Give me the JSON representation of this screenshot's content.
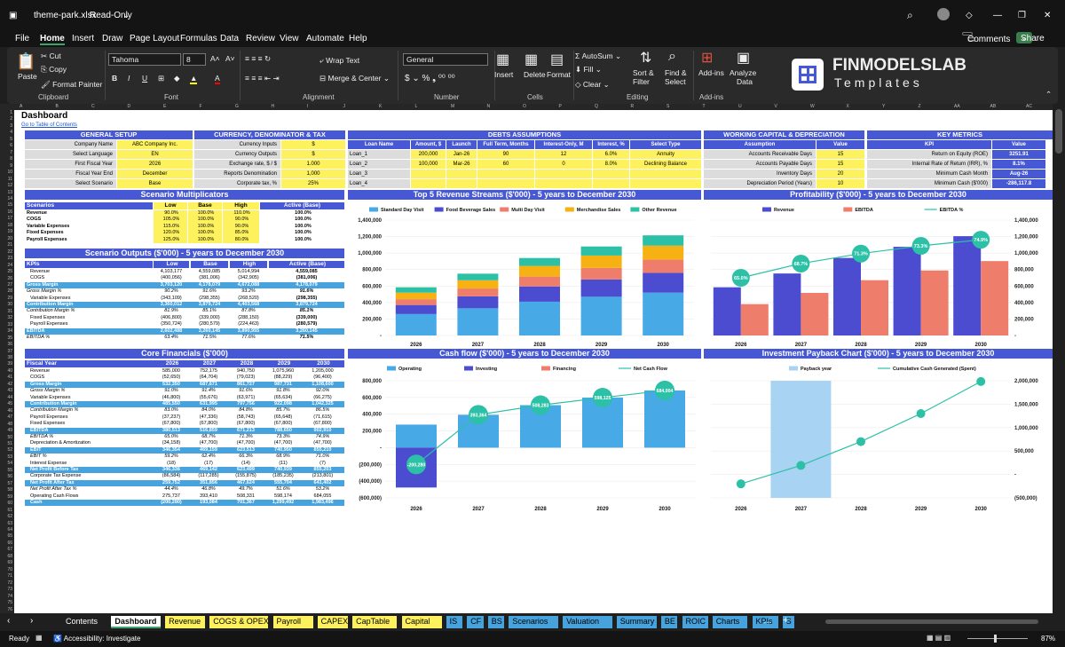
{
  "window": {
    "file": "theme-park.xlsx",
    "mode": "Read-Only"
  },
  "menu": [
    "File",
    "Home",
    "Insert",
    "Draw",
    "Page Layout",
    "Formulas",
    "Data",
    "Review",
    "View",
    "Automate",
    "Help"
  ],
  "comments_label": "Comments",
  "share_label": "Share",
  "ribbon": {
    "paste": "Paste",
    "cut": "Cut",
    "copy": "Copy",
    "format_painter": "Format Painter",
    "clipboard": "Clipboard",
    "font_name": "Tahoma",
    "font_size": "8",
    "font": "Font",
    "wrap": "Wrap Text",
    "merge": "Merge & Center",
    "alignment": "Alignment",
    "numfmt": "General",
    "number": "Number",
    "insert": "Insert",
    "delete": "Delete",
    "format": "Format",
    "cells": "Cells",
    "autosum": "AutoSum",
    "fill": "Fill",
    "clear": "Clear",
    "sort": "Sort &",
    "filter": "Filter",
    "find": "Find &",
    "select": "Select",
    "editing": "Editing",
    "addins": "Add-ins",
    "analyze": "Analyze",
    "data": "Data",
    "addins_grp": "Add-ins",
    "logo1": "FINMODELSLAB",
    "logo2": "Templates"
  },
  "columns": [
    "A",
    "B",
    "C",
    "D",
    "E",
    "F",
    "G",
    "H",
    "I",
    "J",
    "K",
    "L",
    "M",
    "N",
    "O",
    "P",
    "Q",
    "R",
    "S",
    "T",
    "U",
    "V",
    "W",
    "X",
    "Y",
    "Z",
    "AA",
    "AB",
    "AC"
  ],
  "sheet": {
    "title": "Dashboard",
    "toc": "Go to Table of Contents",
    "general": {
      "header": "GENERAL SETUP",
      "rows": [
        [
          "Company Name",
          "ABC Company Inc."
        ],
        [
          "Select Language",
          "EN"
        ],
        [
          "First Fiscal Year",
          "2026"
        ],
        [
          "Fiscal Year End",
          "December"
        ],
        [
          "Select Scenario",
          "Base"
        ]
      ]
    },
    "currency": {
      "header": "CURRENCY, DENOMINATOR & TAX",
      "rows": [
        [
          "Currency Inputs",
          "$"
        ],
        [
          "Currency Outputs",
          "$"
        ],
        [
          "Exchange rate, $ / $",
          "1.000"
        ],
        [
          "Reports Denomination",
          "1,000"
        ],
        [
          "Corporate tax, %",
          "25%"
        ]
      ]
    },
    "debts": {
      "header": "DEBTS ASSUMPTIONS",
      "cols": [
        "Loan Name",
        "Amount, $",
        "Launch",
        "Full Term, Months",
        "Interest-Only, M",
        "Interest, %",
        "Select Type"
      ],
      "rows": [
        [
          "Loan_1",
          "200,000",
          "Jan-26",
          "90",
          "12",
          "6.0%",
          "Annuity"
        ],
        [
          "Loan_2",
          "100,000",
          "Mar-26",
          "60",
          "0",
          "8.0%",
          "Declining Balance"
        ],
        [
          "Loan_3",
          "",
          "",
          "",
          "",
          "",
          ""
        ],
        [
          "Loan_4",
          "",
          "",
          "",
          "",
          "",
          ""
        ]
      ]
    },
    "wc": {
      "header": "WORKING CAPITAL & DEPRECIATION",
      "cols": [
        "Assumption",
        "Value"
      ],
      "rows": [
        [
          "Accounts Receivable Days",
          "15"
        ],
        [
          "Accounts Payable Days",
          "15"
        ],
        [
          "Inventory Days",
          "20"
        ],
        [
          "Depreciation Period (Years)",
          "10"
        ]
      ]
    },
    "metrics": {
      "header": "KEY METRICS",
      "cols": [
        "KPI",
        "Value"
      ],
      "rows": [
        [
          "Return on Equity (ROE)",
          "3251.91"
        ],
        [
          "Internal Rate of Return (IRR), %",
          "8.1%"
        ],
        [
          "Minimum Cash Month",
          "Aug-26"
        ],
        [
          "Minimum Cash ($'000)",
          "-286,117.8"
        ]
      ]
    },
    "multipliers": {
      "title": "Scenario Multiplicators",
      "cols": [
        "Scenarios",
        "Low",
        "Base",
        "High",
        "Active (Base)"
      ],
      "rows": [
        [
          "Revenue",
          "90.0%",
          "100.0%",
          "110.0%",
          "100.0%"
        ],
        [
          "COGS",
          "105.0%",
          "100.0%",
          "90.0%",
          "100.0%"
        ],
        [
          "Variable Expenses",
          "115.0%",
          "100.0%",
          "90.0%",
          "100.0%"
        ],
        [
          "Fixed Expenses",
          "120.0%",
          "100.0%",
          "85.0%",
          "100.0%"
        ],
        [
          "Payroll Expenses",
          "125.0%",
          "100.0%",
          "80.0%",
          "100.0%"
        ]
      ]
    },
    "outputs": {
      "title": "Scenario Outputs ($'000) - 5 years to December 2030",
      "cols": [
        "KPIs",
        "Low",
        "Base",
        "High",
        "Active (Base)"
      ],
      "rows": [
        [
          "Revenue",
          "4,103,177",
          "4,559,085",
          "5,014,994",
          "4,559,085",
          ""
        ],
        [
          "COGS",
          "(400,056)",
          "(381,006)",
          "(342,905)",
          "(381,006)",
          ""
        ],
        [
          "Gross Margin",
          "3,703,120",
          "4,178,079",
          "4,672,088",
          "4,178,079",
          "hl"
        ],
        [
          "Gross Margin %",
          "90.2%",
          "91.6%",
          "93.2%",
          "91.6%",
          "it"
        ],
        [
          "Variable Expenses",
          "(343,109)",
          "(298,355)",
          "(268,520)",
          "(298,355)",
          ""
        ],
        [
          "Contribution Margin",
          "3,360,012",
          "3,879,724",
          "4,403,568",
          "3,879,724",
          "hl"
        ],
        [
          "Contribution Margin %",
          "81.9%",
          "85.1%",
          "87.8%",
          "85.1%",
          "it"
        ],
        [
          "Fixed Expenses",
          "(406,800)",
          "(339,000)",
          "(288,150)",
          "(339,000)",
          ""
        ],
        [
          "Payroll Expenses",
          "(350,724)",
          "(280,579)",
          "(224,463)",
          "(280,579)",
          ""
        ],
        [
          "EBITDA",
          "2,602,488",
          "3,260,145",
          "3,890,955",
          "3,260,145",
          "hl"
        ],
        [
          "EBITDA %",
          "63.4%",
          "71.5%",
          "77.6%",
          "71.5%",
          "it"
        ]
      ]
    },
    "core": {
      "title": "Core Financials ($'000)",
      "cols": [
        "Fiscal Year",
        "2026",
        "2027",
        "2028",
        "2029",
        "2030"
      ],
      "rows": [
        [
          "Revenue",
          "585,000",
          "752,175",
          "940,750",
          "1,075,960",
          "1,205,000",
          ""
        ],
        [
          "COGS",
          "(52,650)",
          "(64,704)",
          "(79,023)",
          "(88,229)",
          "(96,400)",
          ""
        ],
        [
          "Gross Margin",
          "532,350",
          "687,671",
          "861,727",
          "987,731",
          "1,108,600",
          "hl"
        ],
        [
          "Gross Margin %",
          "91.0%",
          "91.4%",
          "91.6%",
          "91.8%",
          "92.0%",
          "it"
        ],
        [
          "Variable Expenses",
          "(46,800)",
          "(55,676)",
          "(63,971)",
          "(65,634)",
          "(66,275)",
          ""
        ],
        [
          "Contribution Margin",
          "485,550",
          "631,995",
          "797,756",
          "922,098",
          "1,042,325",
          "hl"
        ],
        [
          "Contribution Margin %",
          "83.0%",
          "84.0%",
          "84.8%",
          "85.7%",
          "86.5%",
          "it"
        ],
        [
          "Payroll Expenses",
          "(37,237)",
          "(47,336)",
          "(58,743)",
          "(65,648)",
          "(71,615)",
          ""
        ],
        [
          "Fixed Expenses",
          "(67,800)",
          "(67,800)",
          "(67,800)",
          "(67,800)",
          "(67,800)",
          ""
        ],
        [
          "EBITDA",
          "380,513",
          "516,859",
          "671,213",
          "788,650",
          "902,910",
          "hl"
        ],
        [
          "EBITDA %",
          "65.0%",
          "68.7%",
          "71.3%",
          "73.3%",
          "74.9%",
          "it"
        ],
        [
          "Depreciation & Amortization",
          "(34,158)",
          "(47,700)",
          "(47,700)",
          "(47,700)",
          "(47,700)",
          ""
        ],
        [
          "EBIT",
          "346,354",
          "469,159",
          "623,513",
          "740,950",
          "855,210",
          "hl"
        ],
        [
          "EBIT %",
          "59.2%",
          "62.4%",
          "66.3%",
          "68.9%",
          "71.0%",
          "it"
        ],
        [
          "Interest Expense",
          "(18)",
          "(17)",
          "(14)",
          "(11)",
          "(7)",
          ""
        ],
        [
          "Net Profit Before Tax",
          "346,336",
          "469,142",
          "623,499",
          "740,939",
          "855,203",
          "hl"
        ],
        [
          "Corporate Tax Expense",
          "(86,584)",
          "(117,285)",
          "(155,875)",
          "(185,235)",
          "(213,801)",
          ""
        ],
        [
          "Net Profit After Tax",
          "259,752",
          "351,856",
          "467,624",
          "555,704",
          "641,402",
          "hl"
        ],
        [
          "Net Profit After Tax %",
          "44.4%",
          "46.8%",
          "49.7%",
          "51.6%",
          "53.2%",
          "it"
        ],
        [
          "Operating Cash Flows",
          "275,737",
          "393,410",
          "508,331",
          "598,174",
          "684,055",
          ""
        ],
        [
          "Cash",
          "(200,280)",
          "193,084",
          "701,367",
          "1,299,492",
          "1,983,496",
          "hl"
        ]
      ]
    }
  },
  "chart_data": [
    {
      "type": "bar",
      "title": "Top 5 Revenue Streams ($'000) - 5 years to December 2030",
      "categories": [
        "2026",
        "2027",
        "2028",
        "2029",
        "2030"
      ],
      "series": [
        {
          "name": "Standard Day Visit",
          "color": "#47a9e6",
          "values": [
            260000,
            330000,
            410000,
            470000,
            520000
          ]
        },
        {
          "name": "Food Beverage Sales",
          "color": "#4b4cd0",
          "values": [
            110000,
            145000,
            185000,
            210000,
            240000
          ]
        },
        {
          "name": "Multi Day Visit",
          "color": "#ef7d6b",
          "values": [
            70000,
            95000,
            120000,
            140000,
            160000
          ]
        },
        {
          "name": "Merchandise Sales",
          "color": "#f5b212",
          "values": [
            80000,
            100000,
            130000,
            150000,
            170000
          ]
        },
        {
          "name": "Other Revenue",
          "color": "#2cc0a6",
          "values": [
            65000,
            80000,
            95000,
            110000,
            125000
          ]
        }
      ],
      "yticks": [
        "-",
        "200,000",
        "400,000",
        "600,000",
        "800,000",
        "1,000,000",
        "1,200,000",
        "1,400,000"
      ],
      "ylim": [
        0,
        1400000
      ]
    },
    {
      "type": "bar",
      "title": "Profitability ($'000) - 5 years to December 2030",
      "categories": [
        "2026",
        "2027",
        "2028",
        "2029",
        "2030"
      ],
      "series": [
        {
          "name": "Revenue",
          "color": "#4b4cd0",
          "values": [
            585000,
            752175,
            940750,
            1075960,
            1205000
          ]
        },
        {
          "name": "EBITDA",
          "color": "#ef7d6b",
          "values": [
            380513,
            516859,
            671213,
            788650,
            902910
          ]
        },
        {
          "name": "EBITDA %",
          "color": "#2cc0a6",
          "labels": [
            "65.0%",
            "68.7%",
            "71.3%",
            "73.3%",
            "74.9%"
          ],
          "values": [
            65.0,
            68.7,
            71.3,
            73.3,
            74.9
          ]
        }
      ],
      "yticks": [
        "-",
        "200,000",
        "400,000",
        "600,000",
        "800,000",
        "1,000,000",
        "1,200,000",
        "1,400,000"
      ],
      "ylim": [
        0,
        1400000
      ]
    },
    {
      "type": "bar",
      "title": "Cash flow ($'000) - 5 years to December 2030",
      "categories": [
        "2026",
        "2027",
        "2028",
        "2029",
        "2030"
      ],
      "series": [
        {
          "name": "Operating",
          "color": "#47a9e6",
          "values": [
            275737,
            393410,
            508331,
            598174,
            684055
          ]
        },
        {
          "name": "Investing",
          "color": "#4b4cd0",
          "values": [
            -476017,
            0,
            0,
            0,
            0
          ]
        },
        {
          "name": "Financing",
          "color": "#ef7d6b",
          "values": [
            0,
            0,
            0,
            0,
            0
          ]
        },
        {
          "name": "Net Cash Flow",
          "color": "#2cc0a6",
          "labels": [
            "-200,280",
            "393,364",
            "508,283",
            "598,125",
            "684,004"
          ],
          "values": [
            -200280,
            393364,
            508283,
            598125,
            684004
          ]
        }
      ],
      "yticks": [
        "(600,000)",
        "(400,000)",
        "(200,000)",
        "-",
        "200,000",
        "400,000",
        "600,000",
        "800,000"
      ],
      "ylim": [
        -600000,
        800000
      ]
    },
    {
      "type": "line",
      "title": "Investment Payback Chart ($'000) - 5 years to December 2030",
      "categories": [
        "2026",
        "2027",
        "2028",
        "2029",
        "2030"
      ],
      "series": [
        {
          "name": "Payback year",
          "color": "#a9d3f3",
          "values": [
            0,
            1,
            0,
            0,
            0
          ]
        },
        {
          "name": "Cumulative Cash Generated (Spent)",
          "color": "#2cc0a6",
          "values": [
            -200280,
            193084,
            701367,
            1299492,
            1983496
          ]
        }
      ],
      "yticks": [
        "(500,000)",
        "-",
        "500,000",
        "1,000,000",
        "1,500,000",
        "2,000,000"
      ],
      "ylim": [
        -500000,
        2000000
      ]
    }
  ],
  "tabs": [
    {
      "label": "Contents",
      "color": "#1f1f1f",
      "fg": "#fff"
    },
    {
      "label": "Dashboard",
      "color": "#fff",
      "fg": "#000"
    },
    {
      "label": "Revenue",
      "color": "#fef15e"
    },
    {
      "label": "COGS & OPEX",
      "color": "#fef15e"
    },
    {
      "label": "Payroll",
      "color": "#fef15e"
    },
    {
      "label": "CAPEX",
      "color": "#fef15e"
    },
    {
      "label": "CapTable",
      "color": "#fef15e"
    },
    {
      "label": "Capital",
      "color": "#fef15e"
    },
    {
      "label": "IS",
      "color": "#47a3dd"
    },
    {
      "label": "CF",
      "color": "#47a3dd"
    },
    {
      "label": "BS",
      "color": "#47a3dd"
    },
    {
      "label": "Scenarios",
      "color": "#47a3dd"
    },
    {
      "label": "Valuation",
      "color": "#47a3dd"
    },
    {
      "label": "Summary",
      "color": "#47a3dd"
    },
    {
      "label": "BE",
      "color": "#47a3dd"
    },
    {
      "label": "ROIC",
      "color": "#47a3dd"
    },
    {
      "label": "Charts",
      "color": "#47a3dd"
    },
    {
      "label": "KPIs",
      "color": "#47a3dd"
    },
    {
      "label": "S",
      "color": "#47a3dd"
    }
  ],
  "status": {
    "ready": "Ready",
    "accessibility": "Accessibility: Investigate",
    "zoom": "87%"
  }
}
